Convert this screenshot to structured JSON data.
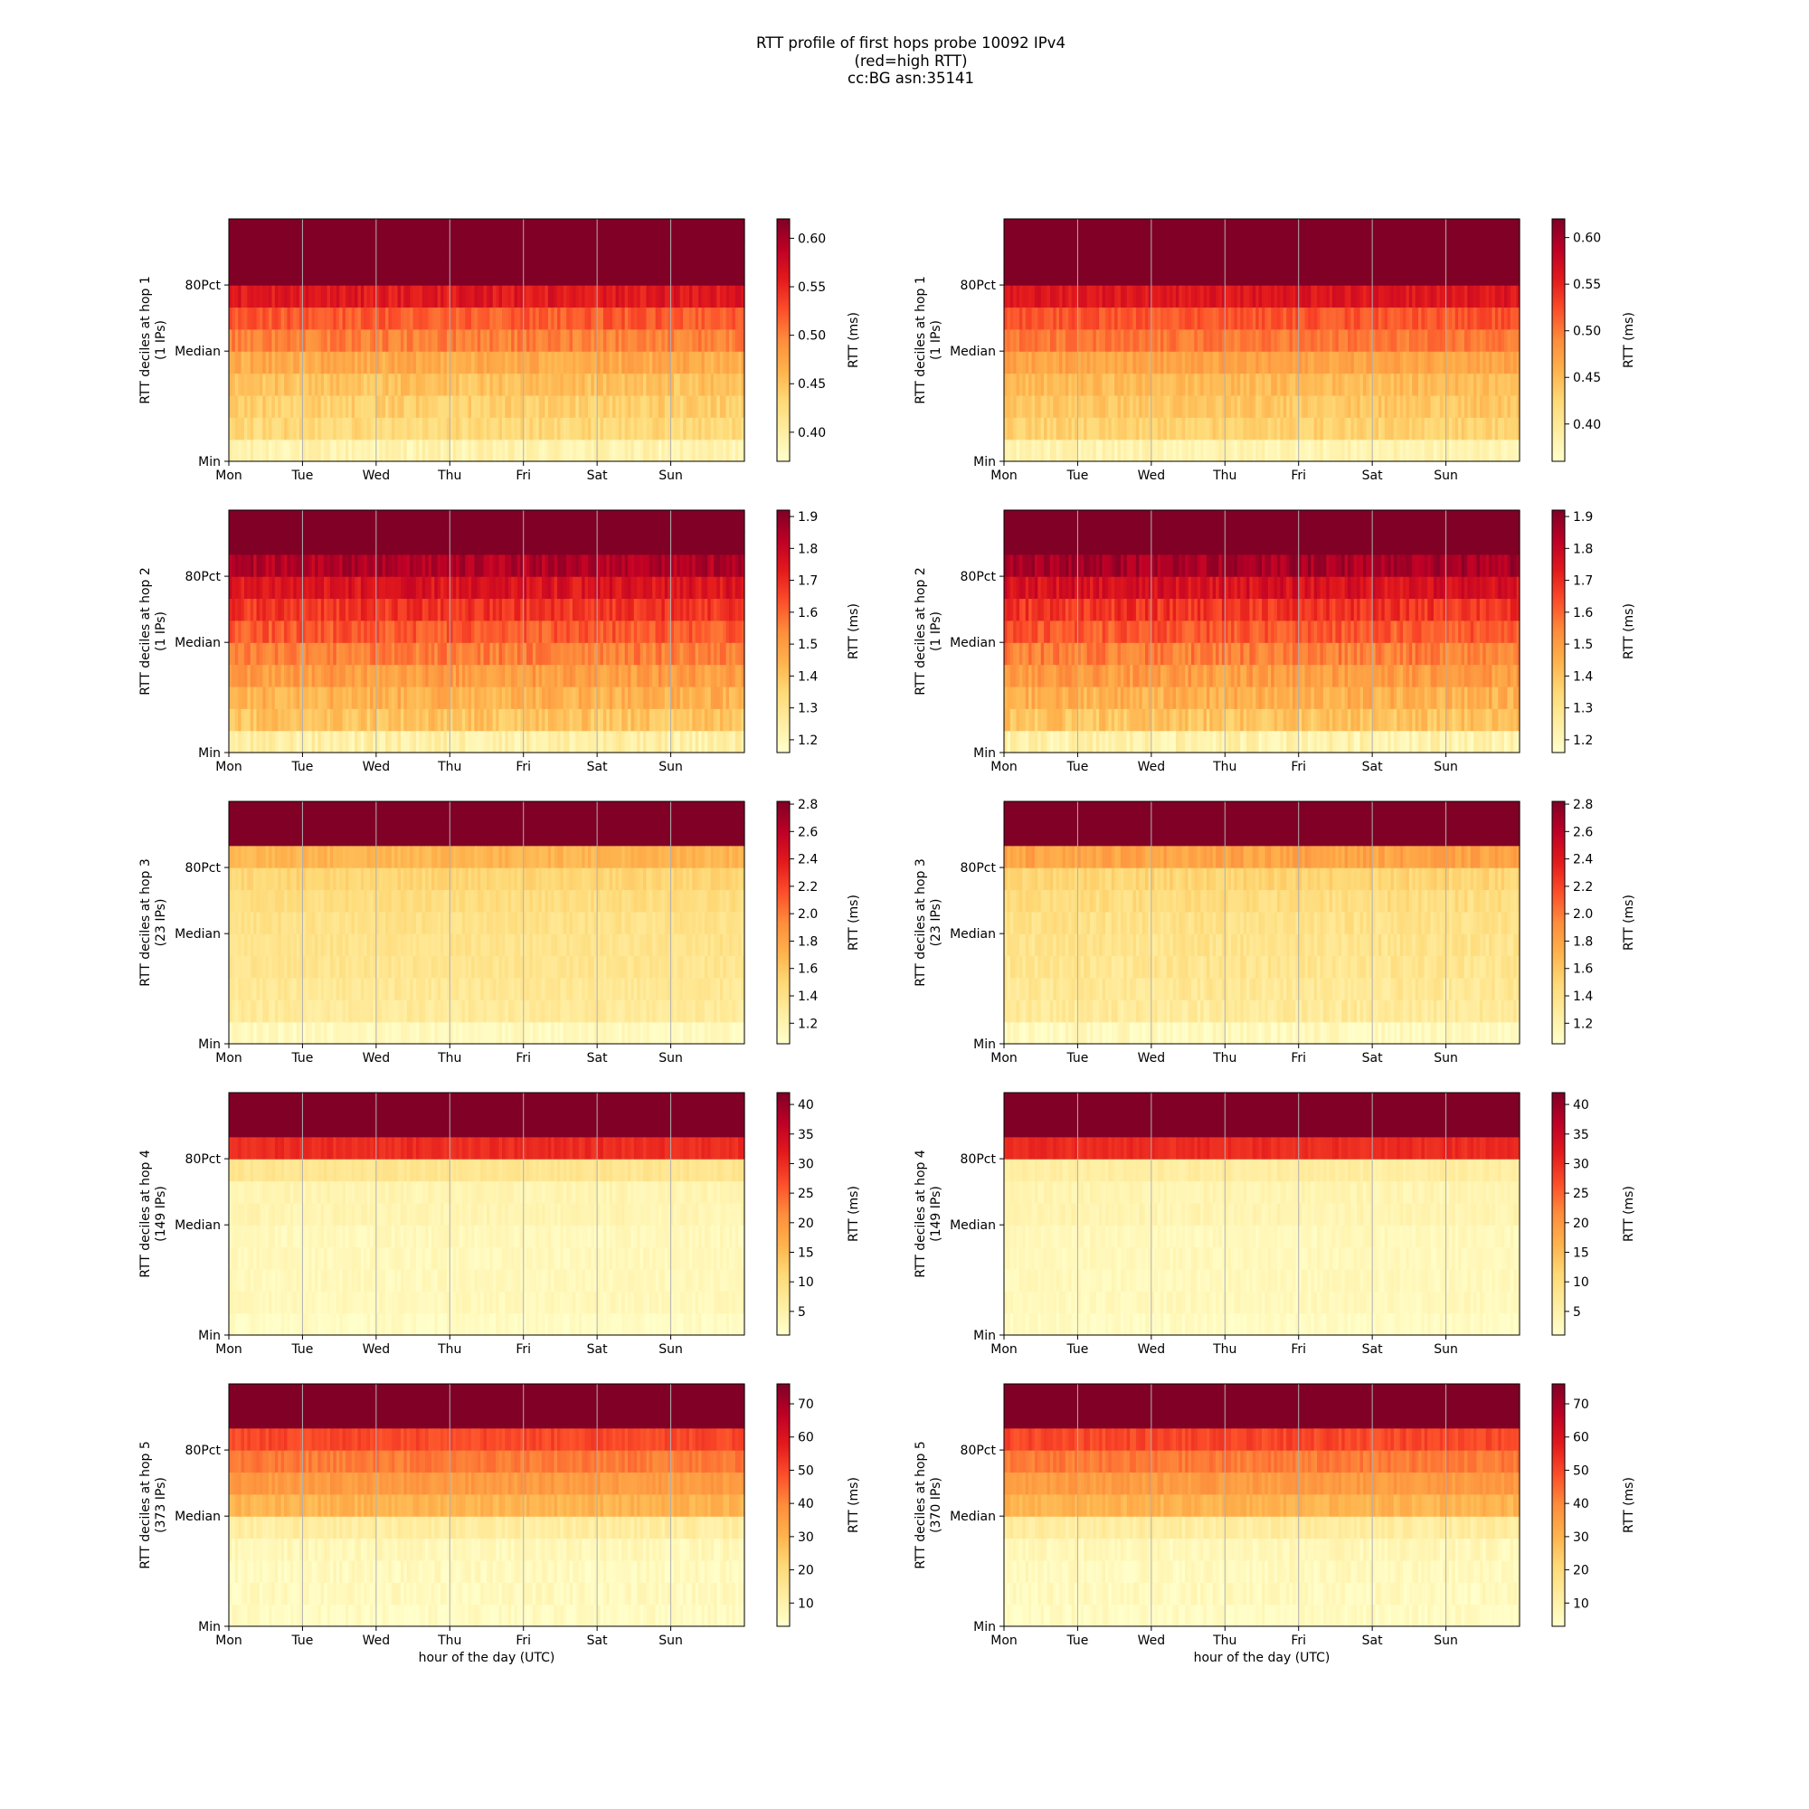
{
  "figure": {
    "title_lines": [
      "RTT profile of first hops probe 10092 IPv4",
      "(red=high RTT)",
      "cc:BG asn:35141"
    ],
    "xlabel": "hour of the day (UTC)"
  },
  "colormap": [
    "#ffffcc",
    "#ffeda0",
    "#fed976",
    "#feb24c",
    "#fd8d3c",
    "#fc4e2a",
    "#e31a1c",
    "#bd0026",
    "#800026"
  ],
  "chart_data": [
    {
      "type": "heatmap",
      "hop": 1,
      "column": "left",
      "ylabel": "RTT deciles at hop 1",
      "ylabel2": "(1 IPs)",
      "x_ticks": [
        "Mon",
        "Tue",
        "Wed",
        "Thu",
        "Fri",
        "Sat",
        "Sun"
      ],
      "y_ticks": [
        "Min",
        "Median",
        "80Pct"
      ],
      "colorbar_label": "RTT (ms)",
      "colorbar_ticks": [
        "0.40",
        "0.45",
        "0.50",
        "0.55",
        "0.60"
      ],
      "clim": [
        0.37,
        0.62
      ],
      "decile_means": [
        0.39,
        0.43,
        0.44,
        0.45,
        0.47,
        0.5,
        0.52,
        0.56,
        0.62,
        0.62,
        0.62
      ],
      "noise": 0.12
    },
    {
      "type": "heatmap",
      "hop": 1,
      "column": "right",
      "ylabel": "RTT deciles at hop 1",
      "ylabel2": "(1 IPs)",
      "x_ticks": [
        "Mon",
        "Tue",
        "Wed",
        "Thu",
        "Fri",
        "Sat",
        "Sun"
      ],
      "y_ticks": [
        "Min",
        "Median",
        "80Pct"
      ],
      "colorbar_label": "RTT (ms)",
      "colorbar_ticks": [
        "0.40",
        "0.45",
        "0.50",
        "0.55",
        "0.60"
      ],
      "clim": [
        0.36,
        0.62
      ],
      "decile_means": [
        0.38,
        0.43,
        0.44,
        0.45,
        0.47,
        0.5,
        0.52,
        0.56,
        0.62,
        0.62,
        0.62
      ],
      "noise": 0.1
    },
    {
      "type": "heatmap",
      "hop": 2,
      "column": "left",
      "ylabel": "RTT deciles at hop 2",
      "ylabel2": "(1 IPs)",
      "x_ticks": [
        "Mon",
        "Tue",
        "Wed",
        "Thu",
        "Fri",
        "Sat",
        "Sun"
      ],
      "y_ticks": [
        "Min",
        "Median",
        "80Pct"
      ],
      "colorbar_label": "RTT (ms)",
      "colorbar_ticks": [
        "1.2",
        "1.3",
        "1.4",
        "1.5",
        "1.6",
        "1.7",
        "1.8",
        "1.9"
      ],
      "clim": [
        1.16,
        1.92
      ],
      "decile_means": [
        1.24,
        1.4,
        1.45,
        1.5,
        1.56,
        1.62,
        1.68,
        1.75,
        1.84,
        1.92,
        1.92
      ],
      "noise": 0.14
    },
    {
      "type": "heatmap",
      "hop": 2,
      "column": "right",
      "ylabel": "RTT deciles at hop 2",
      "ylabel2": "(1 IPs)",
      "x_ticks": [
        "Mon",
        "Tue",
        "Wed",
        "Thu",
        "Fri",
        "Sat",
        "Sun"
      ],
      "y_ticks": [
        "Min",
        "Median",
        "80Pct"
      ],
      "colorbar_label": "RTT (ms)",
      "colorbar_ticks": [
        "1.2",
        "1.3",
        "1.4",
        "1.5",
        "1.6",
        "1.7",
        "1.8",
        "1.9"
      ],
      "clim": [
        1.16,
        1.92
      ],
      "decile_means": [
        1.23,
        1.4,
        1.45,
        1.5,
        1.56,
        1.62,
        1.68,
        1.76,
        1.86,
        1.92,
        1.92
      ],
      "noise": 0.14
    },
    {
      "type": "heatmap",
      "hop": 3,
      "column": "left",
      "ylabel": "RTT deciles at hop 3",
      "ylabel2": "(23 IPs)",
      "x_ticks": [
        "Mon",
        "Tue",
        "Wed",
        "Thu",
        "Fri",
        "Sat",
        "Sun"
      ],
      "y_ticks": [
        "Min",
        "Median",
        "80Pct"
      ],
      "colorbar_label": "RTT (ms)",
      "colorbar_ticks": [
        "1.2",
        "1.4",
        "1.6",
        "1.8",
        "2.0",
        "2.2",
        "2.4",
        "2.6",
        "2.8"
      ],
      "clim": [
        1.05,
        2.82
      ],
      "decile_means": [
        1.12,
        1.3,
        1.33,
        1.36,
        1.38,
        1.4,
        1.44,
        1.5,
        1.7,
        2.82,
        2.82
      ],
      "noise": 0.08
    },
    {
      "type": "heatmap",
      "hop": 3,
      "column": "right",
      "ylabel": "RTT deciles at hop 3",
      "ylabel2": "(23 IPs)",
      "x_ticks": [
        "Mon",
        "Tue",
        "Wed",
        "Thu",
        "Fri",
        "Sat",
        "Sun"
      ],
      "y_ticks": [
        "Min",
        "Median",
        "80Pct"
      ],
      "colorbar_label": "RTT (ms)",
      "colorbar_ticks": [
        "1.2",
        "1.4",
        "1.6",
        "1.8",
        "2.0",
        "2.2",
        "2.4",
        "2.6",
        "2.8"
      ],
      "clim": [
        1.05,
        2.82
      ],
      "decile_means": [
        1.12,
        1.3,
        1.33,
        1.36,
        1.38,
        1.4,
        1.44,
        1.5,
        1.8,
        2.82,
        2.82
      ],
      "noise": 0.1
    },
    {
      "type": "heatmap",
      "hop": 4,
      "column": "left",
      "ylabel": "RTT deciles at hop 4",
      "ylabel2": "(149 IPs)",
      "x_ticks": [
        "Mon",
        "Tue",
        "Wed",
        "Thu",
        "Fri",
        "Sat",
        "Sun"
      ],
      "y_ticks": [
        "Min",
        "Median",
        "80Pct"
      ],
      "colorbar_label": "RTT (ms)",
      "colorbar_ticks": [
        "5",
        "10",
        "15",
        "20",
        "25",
        "30",
        "35",
        "40"
      ],
      "clim": [
        1,
        42
      ],
      "decile_means": [
        2,
        3,
        3,
        3,
        3,
        4,
        4,
        8,
        30,
        34,
        42
      ],
      "noise": 0.06
    },
    {
      "type": "heatmap",
      "hop": 4,
      "column": "right",
      "ylabel": "RTT deciles at hop 4",
      "ylabel2": "(149 IPs)",
      "x_ticks": [
        "Mon",
        "Tue",
        "Wed",
        "Thu",
        "Fri",
        "Sat",
        "Sun"
      ],
      "y_ticks": [
        "Min",
        "Median",
        "80Pct"
      ],
      "colorbar_label": "RTT (ms)",
      "colorbar_ticks": [
        "5",
        "10",
        "15",
        "20",
        "25",
        "30",
        "35",
        "40"
      ],
      "clim": [
        1,
        42
      ],
      "decile_means": [
        2,
        3,
        3,
        3,
        3,
        4,
        4,
        6,
        30,
        34,
        42
      ],
      "noise": 0.06
    },
    {
      "type": "heatmap",
      "hop": 5,
      "column": "left",
      "ylabel": "RTT deciles at hop 5",
      "ylabel2": "(373 IPs)",
      "x_ticks": [
        "Mon",
        "Tue",
        "Wed",
        "Thu",
        "Fri",
        "Sat",
        "Sun"
      ],
      "y_ticks": [
        "Min",
        "Median",
        "80Pct"
      ],
      "colorbar_label": "RTT (ms)",
      "colorbar_ticks": [
        "10",
        "20",
        "30",
        "40",
        "50",
        "60",
        "70"
      ],
      "clim": [
        3,
        76
      ],
      "decile_means": [
        5,
        6,
        6,
        7,
        12,
        30,
        36,
        42,
        50,
        60,
        76
      ],
      "noise": 0.08
    },
    {
      "type": "heatmap",
      "hop": 5,
      "column": "right",
      "ylabel": "RTT deciles at hop 5",
      "ylabel2": "(370 IPs)",
      "x_ticks": [
        "Mon",
        "Tue",
        "Wed",
        "Thu",
        "Fri",
        "Sat",
        "Sun"
      ],
      "y_ticks": [
        "Min",
        "Median",
        "80Pct"
      ],
      "colorbar_label": "RTT (ms)",
      "colorbar_ticks": [
        "10",
        "20",
        "30",
        "40",
        "50",
        "60",
        "70"
      ],
      "clim": [
        3,
        76
      ],
      "decile_means": [
        5,
        6,
        6,
        7,
        12,
        30,
        36,
        42,
        50,
        60,
        76
      ],
      "noise": 0.08
    }
  ]
}
